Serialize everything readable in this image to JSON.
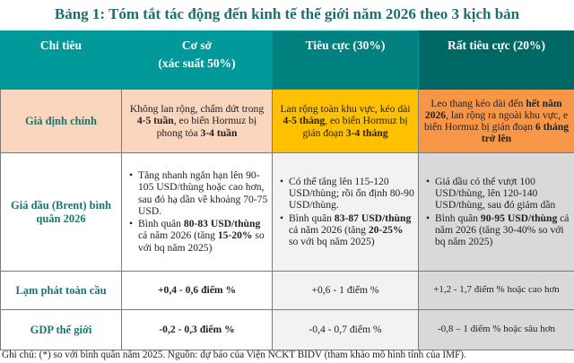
{
  "title": "Bảng 1: Tóm tắt tác động đến kinh tế thế giới năm 2026 theo 3 kịch bản",
  "headers": [
    "Chỉ tiêu",
    "Cơ sở\n(xác suất 50%)",
    "Tiêu cực (30%)",
    "Rất tiêu cực (20%)"
  ],
  "rows": [
    {
      "label": "Giả định chính",
      "cells": [
        [
          [
            {
              "t": "Không lan rộng, chấm dứt trong "
            },
            {
              "t": "4-5 tuần",
              "b": true
            },
            {
              "t": ", eo biển Hormuz bị phong tỏa "
            },
            {
              "t": "3-4 tuần",
              "b": true
            }
          ]
        ],
        [
          [
            {
              "t": "Lan rộng toàn khu vực, kéo dài "
            },
            {
              "t": "4-5 tháng",
              "b": true
            },
            {
              "t": ", eo biển Hormuz bị gián đoạn "
            },
            {
              "t": "3-4 tháng",
              "b": true
            }
          ]
        ],
        [
          [
            {
              "t": "Leo thang kéo dài đến "
            },
            {
              "t": "hết năm 2026",
              "b": true
            },
            {
              "t": ", lan rộng ra ngoài khu vực, e biển Hormuz bị gián đoạn "
            },
            {
              "t": "6 tháng trở lên",
              "b": true
            }
          ]
        ]
      ]
    },
    {
      "label": "Giá dầu (Brent) bình quân 2026",
      "cells": [
        [
          [
            {
              "t": "Tăng nhanh ngắn hạn lên 90-105 USD/thùng hoặc cao hơn, sau đó hạ dần về khoảng 70-75 USD."
            }
          ],
          [
            {
              "t": "Bình quân "
            },
            {
              "t": "80-83 USD/thùng",
              "b": true
            },
            {
              "t": " cả năm 2026 (tăng "
            },
            {
              "t": "15-20%",
              "b": true
            },
            {
              "t": " so với bq năm 2025)"
            }
          ]
        ],
        [
          [
            {
              "t": "Có thể tăng lên 115-120 USD/thùng; rồi ổn định 80-90 USD/thùng."
            }
          ],
          [
            {
              "t": "Bình quân "
            },
            {
              "t": "83-87 USD/thùng",
              "b": true
            },
            {
              "t": " cả năm 2026 (tăng "
            },
            {
              "t": "20-25%",
              "b": true
            },
            {
              "t": " so với bq năm 2025)"
            }
          ]
        ],
        [
          [
            {
              "t": "Giá dầu có thể vượt 100 USD/thùng, lên 120-140 USD/thùng, sau đó giảm dần"
            }
          ],
          [
            {
              "t": "Bình quân "
            },
            {
              "t": "90-95 USD/thùng",
              "b": true
            },
            {
              "t": " cả năm 2026 (tăng 30-40% so với bq năm 2025)"
            }
          ]
        ]
      ]
    },
    {
      "label": "Lạm phát toàn cầu",
      "cells": [
        [
          [
            {
              "t": "+0,4 - 0,6 điểm %",
              "b": true
            }
          ]
        ],
        [
          [
            {
              "t": "+0,6 - 1 điểm %"
            }
          ]
        ],
        [
          [
            {
              "t": "+1,2 - 1,7 điểm % hoặc cao hơn"
            }
          ]
        ]
      ]
    },
    {
      "label": "GDP thế giới",
      "cells": [
        [
          [
            {
              "t": "-0,2 - 0,3 điểm %",
              "b": true
            }
          ]
        ],
        [
          [
            {
              "t": "-0,4 - 0,7 điểm %"
            }
          ]
        ],
        [
          [
            {
              "t": "-0,8 – 1 điểm % hoặc sâu hơn"
            }
          ]
        ]
      ]
    }
  ],
  "note": "Ghi chú: (*) so với bình quân năm 2025. Nguồn: dự báo của Viện NCKT BIDV (tham khảo mô hình tính của IMF).",
  "colors": {
    "header": "#00999a",
    "header_negative": "#00807e",
    "header_very_negative": "#006864",
    "base_row1": "#f9d6bd",
    "negative_row1": "#ffc000",
    "very_negative_row1": "#f79646"
  }
}
